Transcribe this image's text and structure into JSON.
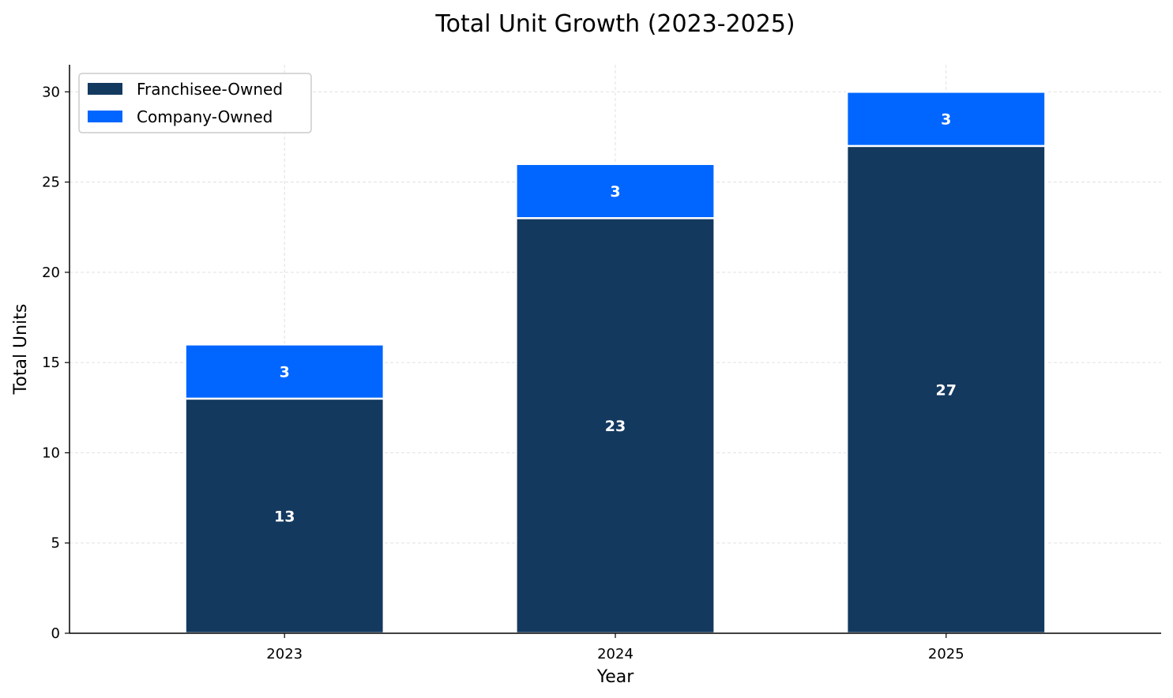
{
  "chart_data": {
    "type": "bar",
    "stacked": true,
    "title": "Total Unit Growth (2023-2025)",
    "xlabel": "Year",
    "ylabel": "Total Units",
    "categories": [
      "2023",
      "2024",
      "2025"
    ],
    "series": [
      {
        "name": "Franchisee-Owned",
        "values": [
          13,
          23,
          27
        ],
        "color": "#14395f"
      },
      {
        "name": "Company-Owned",
        "values": [
          3,
          3,
          3
        ],
        "color": "#0066ff"
      }
    ],
    "ylim": [
      0,
      31.5
    ],
    "yticks": [
      "0",
      "5",
      "10",
      "15",
      "20",
      "25",
      "30"
    ],
    "grid": true,
    "legend_position": "top-left"
  }
}
